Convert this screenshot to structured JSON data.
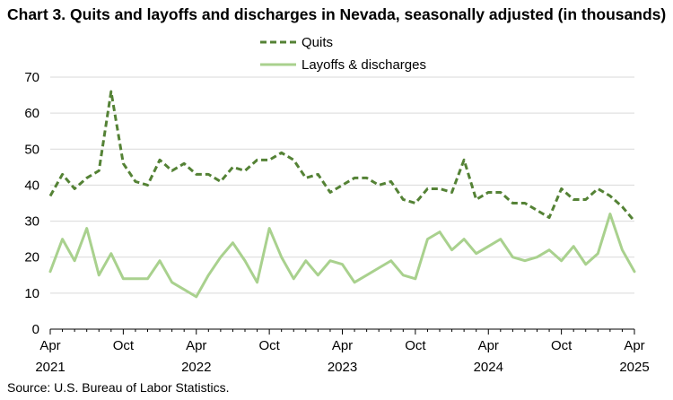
{
  "chart_data": {
    "type": "line",
    "title": "Chart 3. Quits and layoffs and discharges in Nevada, seasonally adjusted (in thousands)",
    "source": "Source: U.S. Bureau of Labor Statistics.",
    "xlabel": "",
    "ylabel": "",
    "ylim": [
      0,
      70
    ],
    "yticks": [
      "0",
      "10",
      "20",
      "30",
      "40",
      "50",
      "60",
      "70"
    ],
    "grid": true,
    "legend_position": "top-center",
    "x_ticks": [
      {
        "month": "Apr",
        "year": "2021",
        "index": 0
      },
      {
        "month": "Oct",
        "year": "",
        "index": 6
      },
      {
        "month": "Apr",
        "year": "2022",
        "index": 12
      },
      {
        "month": "Oct",
        "year": "",
        "index": 18
      },
      {
        "month": "Apr",
        "year": "2023",
        "index": 24
      },
      {
        "month": "Oct",
        "year": "",
        "index": 30
      },
      {
        "month": "Apr",
        "year": "2024",
        "index": 36
      },
      {
        "month": "Oct",
        "year": "",
        "index": 42
      },
      {
        "month": "Apr",
        "year": "2025",
        "index": 48
      }
    ],
    "x_start": "Apr 2021",
    "x_end": "Apr 2025",
    "series": [
      {
        "name": "Quits",
        "color": "#548235",
        "style": "dashed",
        "values": [
          37,
          43,
          39,
          42,
          44,
          66,
          46,
          41,
          40,
          47,
          44,
          46,
          43,
          43,
          41,
          45,
          44,
          47,
          47,
          49,
          47,
          42,
          43,
          38,
          40,
          42,
          42,
          40,
          41,
          36,
          35,
          39,
          39,
          38,
          47,
          36,
          38,
          38,
          35,
          35,
          33,
          31,
          39,
          36,
          36,
          39,
          37,
          34,
          30
        ]
      },
      {
        "name": "Layoffs & discharges",
        "color": "#a9d18e",
        "style": "solid",
        "values": [
          16,
          25,
          19,
          28,
          15,
          21,
          14,
          14,
          14,
          19,
          13,
          11,
          9,
          15,
          20,
          24,
          19,
          13,
          28,
          20,
          14,
          19,
          15,
          19,
          18,
          13,
          15,
          17,
          19,
          15,
          14,
          25,
          27,
          22,
          25,
          21,
          23,
          25,
          20,
          19,
          20,
          22,
          19,
          23,
          18,
          21,
          32,
          22,
          16
        ]
      }
    ]
  }
}
